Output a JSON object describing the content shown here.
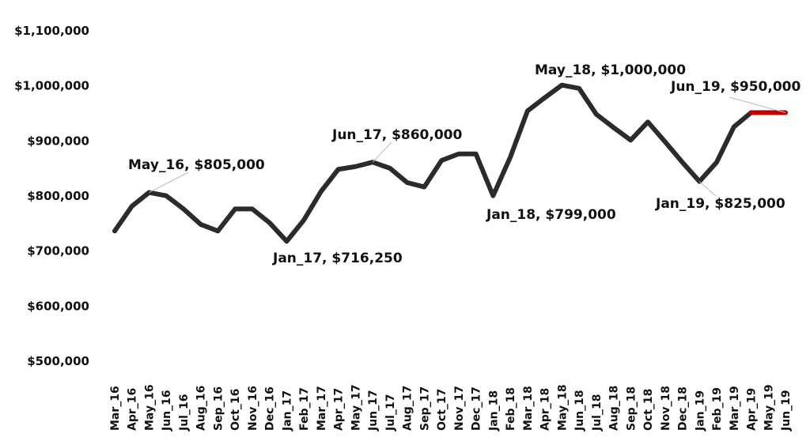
{
  "chart_data": {
    "type": "line",
    "title": "",
    "xlabel": "",
    "ylabel": "",
    "ylim": [
      500000,
      1100000
    ],
    "yticks": [
      500000,
      600000,
      700000,
      800000,
      900000,
      1000000,
      1100000
    ],
    "ytick_labels": [
      "$500,000",
      "$600,000",
      "$700,000",
      "$800,000",
      "$900,000",
      "$1,000,000",
      "$1,100,000"
    ],
    "grid": false,
    "categories": [
      "Mar_16",
      "Apr_16",
      "May_16",
      "Jun_16",
      "Jul_16",
      "Aug_16",
      "Sep_16",
      "Oct_16",
      "Nov_16",
      "Dec_16",
      "Jan_17",
      "Feb_17",
      "Mar_17",
      "Apr_17",
      "May_17",
      "Jun_17",
      "Jul_17",
      "Aug_17",
      "Sep_17",
      "Oct_17",
      "Nov_17",
      "Dec_17",
      "Jan_18",
      "Feb_18",
      "Mar_18",
      "Apr_18",
      "May_18",
      "Jun_18",
      "Jul_18",
      "Aug_18",
      "Sep_18",
      "Oct_18",
      "Nov_18",
      "Dec_18",
      "Jan_19",
      "Feb_19",
      "Mar_19",
      "Apr_19",
      "May_19",
      "Jun_19"
    ],
    "series": [
      {
        "values": [
          735000,
          780000,
          805000,
          799000,
          775000,
          747000,
          735000,
          775000,
          775000,
          750000,
          716250,
          755000,
          807000,
          847000,
          852000,
          860000,
          849000,
          823000,
          815000,
          863000,
          875000,
          875000,
          799000,
          869000,
          953000,
          977000,
          1000000,
          994000,
          947000,
          923000,
          900000,
          933000,
          897000,
          860000,
          825000,
          860000,
          924000,
          950000,
          950000,
          950000
        ],
        "color": "#2b2b2b",
        "highlight_color": "#c00000",
        "highlight_from": "Apr_19"
      }
    ],
    "annotations": [
      {
        "category": "May_16",
        "text": "May_16, $805,000"
      },
      {
        "category": "Jan_17",
        "text": "Jan_17, $716,250"
      },
      {
        "category": "Jun_17",
        "text": "Jun_17, $860,000"
      },
      {
        "category": "Jan_18",
        "text": "Jan_18, $799,000"
      },
      {
        "category": "May_18",
        "text": "May_18, $1,000,000"
      },
      {
        "category": "Jan_19",
        "text": "Jan_19, $825,000"
      },
      {
        "category": "Jun_19",
        "text": "Jun_19, $950,000"
      }
    ]
  }
}
